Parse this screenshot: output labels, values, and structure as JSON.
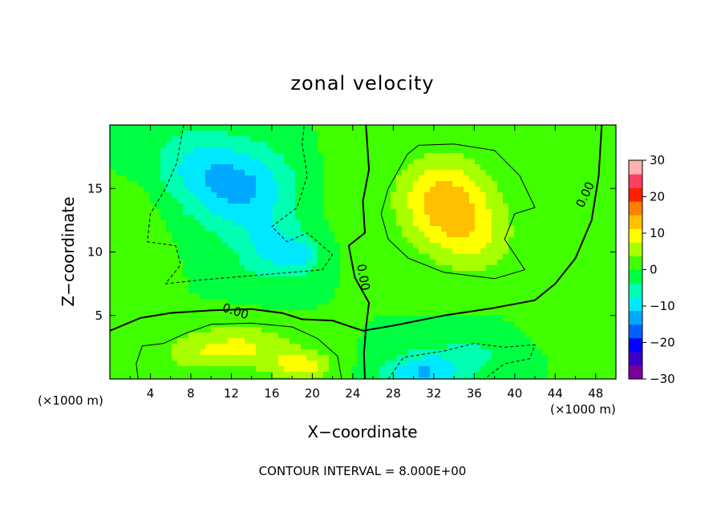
{
  "chart_data": {
    "type": "heatmap",
    "title": "zonal velocity",
    "xlabel": "X−coordinate",
    "ylabel": "Z−coordinate",
    "x_unit_left": "(×1000 m)",
    "x_unit_right": "(×1000 m)",
    "xlim": [
      0,
      50
    ],
    "ylim": [
      0,
      20
    ],
    "x_ticks": [
      4,
      8,
      12,
      16,
      20,
      24,
      28,
      32,
      36,
      40,
      44,
      48
    ],
    "y_ticks": [
      5,
      10,
      15
    ],
    "x_tick_labels": [
      "4",
      "8",
      "12",
      "16",
      "20",
      "24",
      "28",
      "32",
      "36",
      "40",
      "44",
      "48"
    ],
    "y_tick_labels": [
      "5",
      "10",
      "15"
    ],
    "colorbar": {
      "range": [
        -30,
        30
      ],
      "ticks": [
        30,
        20,
        10,
        0,
        -10,
        -20,
        -30
      ],
      "tick_labels": [
        "30",
        "20",
        "10",
        "0",
        "−10",
        "−20",
        "−30"
      ],
      "colors": [
        "#7a00a0",
        "#3a00c8",
        "#0000ff",
        "#0060ff",
        "#00a8ff",
        "#00e8ff",
        "#00ffb0",
        "#00ff40",
        "#40ff00",
        "#a8ff00",
        "#ffff00",
        "#ffc000",
        "#ff8000",
        "#ff2000",
        "#ff4060",
        "#ffb0b0"
      ]
    },
    "contour_labels": [
      {
        "text": "0.00",
        "x": 12.4,
        "z": 5.3,
        "angle": 18
      },
      {
        "text": "0.00",
        "x": 25.0,
        "z": 8.0,
        "angle": 80
      },
      {
        "text": "0.00",
        "x": 47.0,
        "z": 14.5,
        "angle": -65
      }
    ],
    "anomalies": [
      {
        "x": 13,
        "z": 15,
        "sx": 5,
        "sz": 3.5,
        "v": -12
      },
      {
        "x": 16,
        "z": 10,
        "sx": 3.5,
        "sz": 2.5,
        "v": -7
      },
      {
        "x": 8,
        "z": 17,
        "sx": 4,
        "sz": 3,
        "v": -6
      },
      {
        "x": 19,
        "z": 9.8,
        "sx": 2,
        "sz": 1.4,
        "v": -6
      },
      {
        "x": 33,
        "z": 14,
        "sx": 4.5,
        "sz": 3.5,
        "v": 13
      },
      {
        "x": 36,
        "z": 11,
        "sx": 4,
        "sz": 3,
        "v": 6
      },
      {
        "x": 13,
        "z": 2.5,
        "sx": 5,
        "sz": 1.8,
        "v": 8
      },
      {
        "x": 19,
        "z": 1.0,
        "sx": 3,
        "sz": 1.2,
        "v": 9
      },
      {
        "x": 8,
        "z": 2,
        "sx": 3,
        "sz": 1.5,
        "v": 4
      },
      {
        "x": 31,
        "z": 0.5,
        "sx": 4,
        "sz": 1.5,
        "v": -11
      },
      {
        "x": 36,
        "z": 2,
        "sx": 5,
        "sz": 1.5,
        "v": -4
      },
      {
        "x": 2,
        "z": 3,
        "sx": 2,
        "sz": 2,
        "v": 3
      },
      {
        "x": 46,
        "z": 4,
        "sx": 3,
        "sz": 2,
        "v": 3
      },
      {
        "x": 44,
        "z": 11,
        "sx": 3,
        "sz": 6,
        "v": 3
      },
      {
        "x": 3,
        "z": 11,
        "sx": 2.5,
        "sz": 4,
        "v": 3
      },
      {
        "x": 22,
        "z": 15,
        "sx": 2.5,
        "sz": 5,
        "v": 1
      }
    ],
    "contours": [
      {
        "level": 0,
        "style": "thick",
        "points": [
          [
            0,
            3.8
          ],
          [
            3,
            4.8
          ],
          [
            6,
            5.2
          ],
          [
            10,
            5.4
          ],
          [
            14,
            5.5
          ],
          [
            17,
            5.2
          ],
          [
            19,
            4.7
          ],
          [
            22,
            4.6
          ],
          [
            25,
            3.8
          ],
          [
            28,
            4.2
          ],
          [
            33,
            5.0
          ],
          [
            38,
            5.6
          ],
          [
            42,
            6.2
          ],
          [
            44,
            7.5
          ],
          [
            46,
            9.5
          ],
          [
            47.6,
            12.5
          ],
          [
            48.3,
            16
          ],
          [
            48.6,
            20
          ]
        ]
      },
      {
        "level": 0,
        "style": "thick",
        "points": [
          [
            25.2,
            0
          ],
          [
            25.1,
            2
          ],
          [
            25.3,
            4
          ],
          [
            25.6,
            6
          ],
          [
            24.2,
            8
          ],
          [
            23.6,
            10.5
          ],
          [
            25.2,
            11.5
          ],
          [
            25,
            14
          ],
          [
            25.6,
            16.5
          ],
          [
            25.3,
            20
          ]
        ]
      },
      {
        "level": -8,
        "style": "dashed",
        "points": [
          [
            7.3,
            20
          ],
          [
            6.6,
            17
          ],
          [
            5.5,
            15
          ],
          [
            4,
            13
          ],
          [
            3.7,
            10.8
          ],
          [
            6.5,
            10.5
          ],
          [
            7,
            9
          ],
          [
            5.5,
            7.5
          ],
          [
            9,
            7.8
          ],
          [
            15,
            8.2
          ],
          [
            21,
            8.6
          ],
          [
            22,
            9.8
          ],
          [
            19.5,
            11.5
          ],
          [
            17.5,
            10.8
          ],
          [
            16,
            12
          ],
          [
            18.5,
            13.5
          ],
          [
            19.5,
            16
          ],
          [
            19,
            18.5
          ],
          [
            19.2,
            20
          ]
        ]
      },
      {
        "level": 8,
        "style": "thin",
        "points": [
          [
            29.4,
            17.7
          ],
          [
            27.5,
            15
          ],
          [
            26.8,
            13
          ],
          [
            27.5,
            11
          ],
          [
            29.5,
            9.5
          ],
          [
            33,
            8.4
          ],
          [
            38,
            7.9
          ],
          [
            41,
            8.6
          ],
          [
            39,
            11
          ],
          [
            40,
            13
          ],
          [
            42,
            13.5
          ],
          [
            40.5,
            16
          ],
          [
            38,
            18
          ],
          [
            34,
            18.5
          ],
          [
            30.5,
            18.4
          ],
          [
            29.4,
            17.7
          ]
        ]
      },
      {
        "level": 8,
        "style": "thin",
        "points": [
          [
            2.8,
            0
          ],
          [
            2.6,
            1.2
          ],
          [
            3.2,
            2.6
          ],
          [
            5.3,
            2.8
          ],
          [
            7.5,
            3.6
          ],
          [
            10,
            4.3
          ],
          [
            14,
            4.4
          ],
          [
            18,
            4.1
          ],
          [
            20.5,
            3.2
          ],
          [
            22.5,
            1.8
          ],
          [
            22.9,
            0
          ]
        ]
      },
      {
        "level": -8,
        "style": "dashed",
        "points": [
          [
            27.5,
            0
          ],
          [
            29,
            1.7
          ],
          [
            33,
            2.2
          ],
          [
            36,
            2.8
          ],
          [
            39,
            2.5
          ],
          [
            42,
            2.7
          ],
          [
            41.5,
            1.6
          ],
          [
            39,
            1.2
          ],
          [
            37,
            0
          ]
        ]
      }
    ],
    "footer": "CONTOUR INTERVAL = 8.000E+00"
  }
}
